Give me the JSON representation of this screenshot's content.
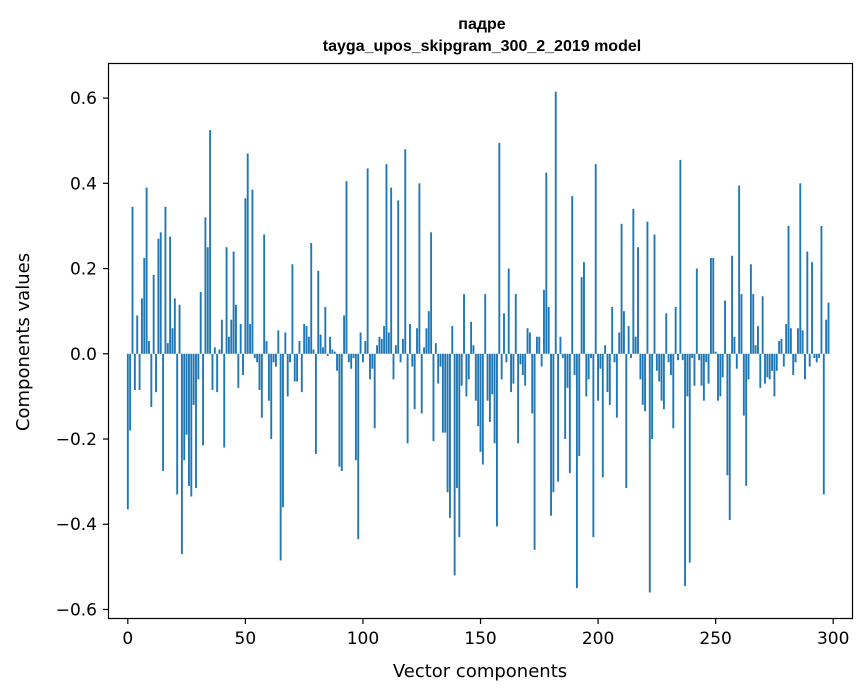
{
  "chart_data": {
    "type": "bar",
    "title": "падре",
    "subtitle": "tayga_upos_skipgram_300_2_2019 model",
    "xlabel": "Vector components",
    "ylabel": "Components values",
    "xlim": [
      -8,
      308
    ],
    "ylim": [
      -0.62,
      0.68
    ],
    "xticks": [
      0,
      50,
      100,
      150,
      200,
      250,
      300
    ],
    "xtick_labels": [
      "0",
      "50",
      "100",
      "150",
      "200",
      "250",
      "300"
    ],
    "yticks": [
      -0.6,
      -0.4,
      -0.2,
      0.0,
      0.2,
      0.4,
      0.6
    ],
    "ytick_labels": [
      "−0.6",
      "−0.4",
      "−0.2",
      "0.0",
      "0.2",
      "0.4",
      "0.6"
    ],
    "bar_color": "#1f77b4",
    "grid": false,
    "values": [
      -0.365,
      -0.18,
      0.345,
      -0.085,
      0.09,
      -0.085,
      0.13,
      0.225,
      0.39,
      0.03,
      -0.125,
      0.185,
      -0.09,
      0.27,
      0.285,
      -0.275,
      0.345,
      0.025,
      0.275,
      0.06,
      0.13,
      -0.33,
      0.115,
      -0.47,
      -0.25,
      -0.19,
      -0.31,
      -0.335,
      -0.12,
      -0.315,
      -0.06,
      0.145,
      -0.215,
      0.32,
      0.25,
      0.525,
      -0.085,
      0.015,
      -0.09,
      0.01,
      0.08,
      -0.22,
      0.25,
      0.04,
      0.08,
      0.24,
      0.115,
      -0.08,
      0.07,
      -0.05,
      0.365,
      0.47,
      0.07,
      0.385,
      -0.01,
      -0.02,
      -0.085,
      -0.15,
      0.28,
      0.03,
      -0.11,
      -0.2,
      -0.02,
      -0.03,
      0.055,
      -0.485,
      -0.36,
      0.05,
      -0.1,
      -0.02,
      0.21,
      -0.065,
      -0.065,
      0.03,
      -0.09,
      0.07,
      0.065,
      0.04,
      0.26,
      0.01,
      -0.235,
      0.195,
      0.045,
      0.015,
      0.11,
      -0.005,
      0.04,
      0.01,
      0.005,
      -0.04,
      -0.265,
      -0.275,
      0.09,
      0.405,
      -0.02,
      -0.035,
      -0.01,
      -0.25,
      -0.435,
      0.05,
      -0.02,
      0.03,
      0.435,
      -0.06,
      -0.035,
      -0.175,
      0.02,
      0.04,
      0.035,
      0.065,
      0.445,
      0.05,
      0.39,
      -0.06,
      0.02,
      0.36,
      -0.02,
      0.035,
      0.48,
      -0.21,
      0.07,
      -0.03,
      -0.13,
      0.06,
      0.4,
      -0.14,
      0.015,
      0.06,
      0.1,
      0.285,
      -0.205,
      0.025,
      -0.07,
      -0.03,
      -0.185,
      -0.185,
      -0.325,
      -0.385,
      0.065,
      -0.52,
      -0.315,
      -0.43,
      -0.075,
      0.14,
      -0.1,
      -0.06,
      0.075,
      0.02,
      -0.11,
      -0.17,
      -0.23,
      -0.26,
      0.14,
      -0.11,
      -0.16,
      -0.095,
      -0.21,
      -0.405,
      0.495,
      -0.06,
      0.095,
      -0.02,
      0.2,
      -0.09,
      -0.07,
      0.14,
      -0.21,
      -0.025,
      -0.05,
      -0.075,
      0.06,
      0.05,
      -0.14,
      -0.46,
      0.04,
      0.04,
      -0.03,
      0.15,
      0.425,
      0.11,
      -0.38,
      -0.325,
      0.615,
      -0.3,
      0.04,
      -0.01,
      -0.2,
      -0.08,
      -0.28,
      0.37,
      -0.05,
      -0.55,
      -0.24,
      0.18,
      0.215,
      -0.1,
      -0.06,
      -0.01,
      -0.43,
      0.445,
      -0.11,
      -0.035,
      -0.29,
      0.02,
      -0.09,
      -0.12,
      0.11,
      -0.02,
      -0.15,
      0.05,
      0.305,
      0.1,
      -0.315,
      0.065,
      -0.01,
      0.34,
      0.04,
      0.25,
      -0.06,
      -0.12,
      -0.135,
      0.31,
      -0.56,
      -0.2,
      0.28,
      -0.04,
      -0.065,
      -0.11,
      -0.13,
      0.095,
      -0.02,
      -0.05,
      -0.175,
      0.11,
      -0.015,
      0.455,
      -0.015,
      -0.545,
      -0.1,
      -0.49,
      -0.01,
      -0.075,
      0.2,
      -0.015,
      -0.075,
      -0.11,
      -0.02,
      -0.07,
      0.225,
      0.225,
      0.005,
      -0.11,
      -0.1,
      -0.055,
      0.125,
      -0.285,
      -0.39,
      0.23,
      0.04,
      -0.035,
      0.395,
      0.14,
      -0.145,
      -0.31,
      -0.06,
      0.21,
      0.14,
      0.02,
      0.065,
      -0.08,
      0.135,
      -0.07,
      -0.055,
      -0.06,
      -0.04,
      -0.1,
      -0.04,
      0.03,
      0.035,
      -0.03,
      0.07,
      0.3,
      0.06,
      -0.05,
      -0.02,
      0.06,
      0.4,
      0.055,
      -0.06,
      0.24,
      -0.03,
      0.215,
      -0.01,
      -0.02,
      -0.01,
      0.3,
      -0.33,
      0.08,
      0.12
    ]
  }
}
